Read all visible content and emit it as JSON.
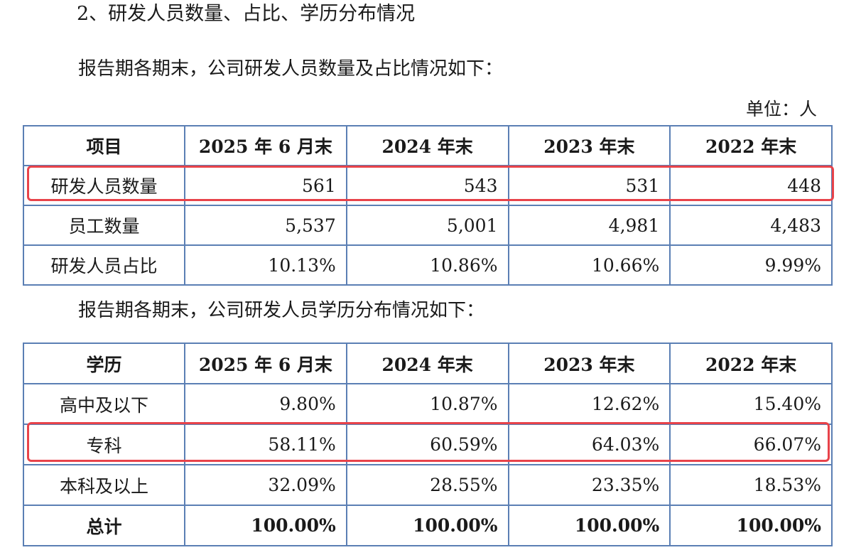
{
  "heading": "2、研发人员数量、占比、学历分布情况",
  "intro_count": "报告期各期末，公司研发人员数量及占比情况如下：",
  "unit": "单位：人",
  "table_count": {
    "headers": [
      "项目",
      "2025 年 6 月末",
      "2024 年末",
      "2023 年末",
      "2022 年末"
    ],
    "rows": [
      {
        "label": "研发人员数量",
        "values": [
          "561",
          "543",
          "531",
          "448"
        ]
      },
      {
        "label": "员工数量",
        "values": [
          "5,537",
          "5,001",
          "4,981",
          "4,483"
        ]
      },
      {
        "label": "研发人员占比",
        "values": [
          "10.13%",
          "10.86%",
          "10.66%",
          "9.99%"
        ]
      }
    ]
  },
  "intro_edu": "报告期各期末，公司研发人员学历分布情况如下：",
  "table_edu": {
    "headers": [
      "学历",
      "2025 年 6 月末",
      "2024 年末",
      "2023 年末",
      "2022 年末"
    ],
    "rows": [
      {
        "label": "高中及以下",
        "values": [
          "9.80%",
          "10.87%",
          "12.62%",
          "15.40%"
        ]
      },
      {
        "label": "专科",
        "values": [
          "58.11%",
          "60.59%",
          "64.03%",
          "66.07%"
        ]
      },
      {
        "label": "本科及以上",
        "values": [
          "32.09%",
          "28.55%",
          "23.35%",
          "18.53%"
        ]
      },
      {
        "label": "总计",
        "values": [
          "100.00%",
          "100.00%",
          "100.00%",
          "100.00%"
        ]
      }
    ]
  },
  "highlight_color": "#e8434a",
  "border_color": "#5b7fb4"
}
